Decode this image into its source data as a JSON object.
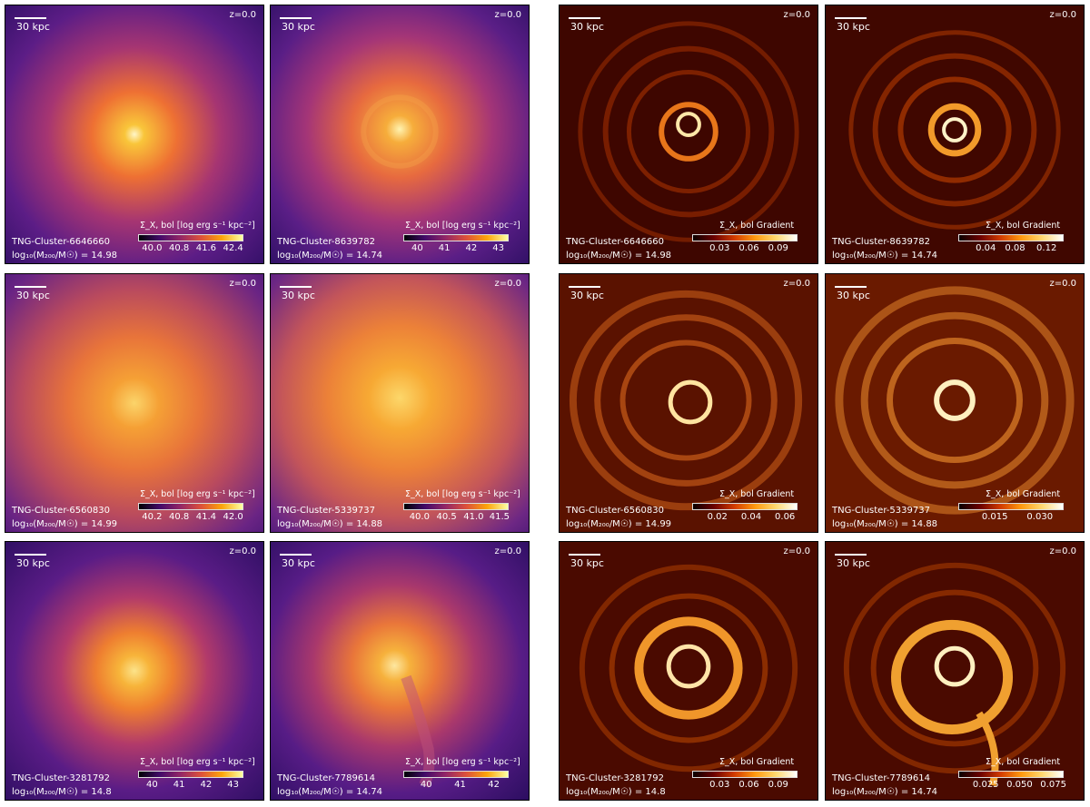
{
  "panels": [
    {
      "name": "TNG-Cluster-6646660",
      "mass": "log₁₀(M₂₀₀/M☉) = 14.98",
      "redshift": "z=0.0",
      "scale": "30 kpc",
      "cb_title": "Σ_X, bol [log erg s⁻¹ kpc⁻²]",
      "cb_ticks": [
        "40.0",
        "40.8",
        "41.6",
        "42.4"
      ]
    },
    {
      "name": "TNG-Cluster-8639782",
      "mass": "log₁₀(M₂₀₀/M☉) = 14.74",
      "redshift": "z=0.0",
      "scale": "30 kpc",
      "cb_title": "Σ_X, bol [log erg s⁻¹ kpc⁻²]",
      "cb_ticks": [
        "40",
        "41",
        "42",
        "43"
      ]
    },
    {
      "name": "TNG-Cluster-6646660",
      "mass": "log₁₀(M₂₀₀/M☉) = 14.98",
      "redshift": "z=0.0",
      "scale": "30 kpc",
      "cb_title": "Σ_X, bol Gradient",
      "cb_ticks": [
        "0.03",
        "0.06",
        "0.09"
      ]
    },
    {
      "name": "TNG-Cluster-8639782",
      "mass": "log₁₀(M₂₀₀/M☉) = 14.74",
      "redshift": "z=0.0",
      "scale": "30 kpc",
      "cb_title": "Σ_X, bol Gradient",
      "cb_ticks": [
        "0.04",
        "0.08",
        "0.12"
      ]
    },
    {
      "name": "TNG-Cluster-6560830",
      "mass": "log₁₀(M₂₀₀/M☉) = 14.99",
      "redshift": "z=0.0",
      "scale": "30 kpc",
      "cb_title": "Σ_X, bol [log erg s⁻¹ kpc⁻²]",
      "cb_ticks": [
        "40.2",
        "40.8",
        "41.4",
        "42.0"
      ]
    },
    {
      "name": "TNG-Cluster-5339737",
      "mass": "log₁₀(M₂₀₀/M☉) = 14.88",
      "redshift": "z=0.0",
      "scale": "30 kpc",
      "cb_title": "Σ_X, bol [log erg s⁻¹ kpc⁻²]",
      "cb_ticks": [
        "40.0",
        "40.5",
        "41.0",
        "41.5"
      ]
    },
    {
      "name": "TNG-Cluster-6560830",
      "mass": "log₁₀(M₂₀₀/M☉) = 14.99",
      "redshift": "z=0.0",
      "scale": "30 kpc",
      "cb_title": "Σ_X, bol Gradient",
      "cb_ticks": [
        "0.02",
        "0.04",
        "0.06"
      ]
    },
    {
      "name": "TNG-Cluster-5339737",
      "mass": "log₁₀(M₂₀₀/M☉) = 14.88",
      "redshift": "z=0.0",
      "scale": "30 kpc",
      "cb_title": "Σ_X, bol Gradient",
      "cb_ticks": [
        "0.015",
        "0.030"
      ]
    },
    {
      "name": "TNG-Cluster-3281792",
      "mass": "log₁₀(M₂₀₀/M☉) = 14.8",
      "redshift": "z=0.0",
      "scale": "30 kpc",
      "cb_title": "Σ_X, bol [log erg s⁻¹ kpc⁻²]",
      "cb_ticks": [
        "40",
        "41",
        "42",
        "43"
      ]
    },
    {
      "name": "TNG-Cluster-7789614",
      "mass": "log₁₀(M₂₀₀/M☉) = 14.74",
      "redshift": "z=0.0",
      "scale": "30 kpc",
      "cb_title": "Σ_X, bol [log erg s⁻¹ kpc⁻²]",
      "cb_ticks": [
        "40",
        "41",
        "42"
      ]
    },
    {
      "name": "TNG-Cluster-3281792",
      "mass": "log₁₀(M₂₀₀/M☉) = 14.8",
      "redshift": "z=0.0",
      "scale": "30 kpc",
      "cb_title": "Σ_X, bol Gradient",
      "cb_ticks": [
        "0.03",
        "0.06",
        "0.09"
      ]
    },
    {
      "name": "TNG-Cluster-7789614",
      "mass": "log₁₀(M₂₀₀/M☉) = 14.74",
      "redshift": "z=0.0",
      "scale": "30 kpc",
      "cb_title": "Σ_X, bol Gradient",
      "cb_ticks": [
        "0.025",
        "0.050",
        "0.075"
      ]
    }
  ],
  "colors": {
    "inferno_bg": "#2a0e5c",
    "inferno_mid": "#b8367a",
    "inferno_core": "#fcd24a",
    "hot_bg": "#3a0500",
    "hot_ring": "#e07a18",
    "hot_peak": "#ffe9b0"
  }
}
